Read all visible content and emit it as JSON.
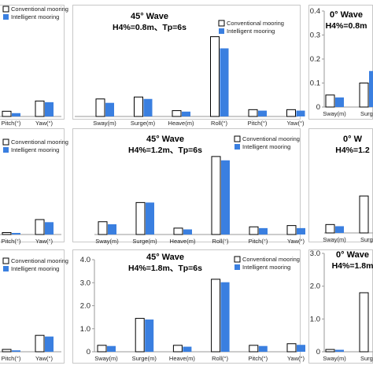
{
  "legend": {
    "conventional": "Conventional mooring",
    "intelligent": "Intelligent mooring"
  },
  "colors": {
    "conventional_fill": "#ffffff",
    "conventional_stroke": "#000000",
    "intelligent": "#3a7fe0",
    "axis": "#9a9a9a"
  },
  "chart_data": [
    {
      "id": "left-1",
      "type": "bar",
      "categories": [
        "Pitch(°)",
        "Yaw(°)"
      ],
      "ylim": [
        0,
        0.45
      ],
      "series": [
        {
          "name": "Conventional mooring",
          "values": [
            0.022,
            0.065
          ]
        },
        {
          "name": "Intelligent mooring",
          "values": [
            0.014,
            0.06
          ]
        }
      ]
    },
    {
      "id": "mid-1",
      "type": "bar",
      "title_line1": "45° Wave",
      "title_line2": "H4%=0.8m、Tp=6s",
      "categories": [
        "Sway(m)",
        "Surge(m)",
        "Heave(m)",
        "Roll(°)",
        "Pitch(°)",
        "Yaw(°)"
      ],
      "ylim": [
        0,
        0.55
      ],
      "series": [
        {
          "name": "Conventional mooring",
          "values": [
            0.09,
            0.1,
            0.03,
            0.41,
            0.035,
            0.035
          ]
        },
        {
          "name": "Intelligent mooring",
          "values": [
            0.07,
            0.09,
            0.025,
            0.35,
            0.03,
            0.03
          ]
        }
      ]
    },
    {
      "id": "right-1",
      "type": "bar",
      "title_line1": "0° Wave",
      "title_line2": "H4%=0.8m",
      "categories": [
        "Sway(m)",
        "Surge"
      ],
      "yticks": [
        "0",
        "0.1",
        "0.2",
        "0.3",
        "0.4"
      ],
      "ylim": [
        0,
        0.4
      ],
      "series": [
        {
          "name": "Conventional mooring",
          "values": [
            0.05,
            0.1
          ]
        },
        {
          "name": "Intelligent mooring",
          "values": [
            0.04,
            0.15
          ]
        }
      ]
    },
    {
      "id": "left-2",
      "type": "bar",
      "categories": [
        "Pitch(°)",
        "Yaw(°)"
      ],
      "ylim": [
        0,
        0.8
      ],
      "series": [
        {
          "name": "Conventional mooring",
          "values": [
            0.015,
            0.115
          ]
        },
        {
          "name": "Intelligent mooring",
          "values": [
            0.012,
            0.095
          ]
        }
      ]
    },
    {
      "id": "mid-2",
      "type": "bar",
      "title_line1": "45° Wave",
      "title_line2": "H4%=1.2m、Tp=6s",
      "categories": [
        "Sway(m)",
        "Surge(m)",
        "Heave(m)",
        "Roll(°)",
        "Pitch(°)",
        "Yaw(°)"
      ],
      "ylim": [
        0,
        0.8
      ],
      "series": [
        {
          "name": "Conventional mooring",
          "values": [
            0.1,
            0.25,
            0.05,
            0.61,
            0.06,
            0.07
          ]
        },
        {
          "name": "Intelligent mooring",
          "values": [
            0.08,
            0.25,
            0.04,
            0.58,
            0.05,
            0.05
          ]
        }
      ]
    },
    {
      "id": "right-2",
      "type": "bar",
      "title_line1": "0° W",
      "title_line2": "H4%=1.2",
      "categories": [
        "Sway(m)",
        "Surge"
      ],
      "ylim": [
        0,
        0.6
      ],
      "series": [
        {
          "name": "Conventional mooring",
          "values": [
            0.05,
            0.22
          ]
        },
        {
          "name": "Intelligent mooring",
          "values": [
            0.04,
            0.0
          ]
        }
      ]
    },
    {
      "id": "left-3",
      "type": "bar",
      "categories": [
        "Pitch(°)",
        "Yaw(°)"
      ],
      "ylim": [
        0,
        4.2
      ],
      "series": [
        {
          "name": "Conventional mooring",
          "values": [
            0.1,
            0.7
          ]
        },
        {
          "name": "Intelligent mooring",
          "values": [
            0.06,
            0.65
          ]
        }
      ]
    },
    {
      "id": "mid-3",
      "type": "bar",
      "title_line1": "45° Wave",
      "title_line2": "H4%=1.8m、Tp=6s",
      "categories": [
        "Sway(m)",
        "Surge(m)",
        "Heave(m)",
        "Roll(°)",
        "Pitch(°)",
        "Yaw(°)"
      ],
      "yticks": [
        "0",
        "1.0",
        "2.0",
        "3.0",
        "4.0"
      ],
      "ylim": [
        0,
        4.0
      ],
      "series": [
        {
          "name": "Conventional mooring",
          "values": [
            0.28,
            1.45,
            0.28,
            3.15,
            0.28,
            0.35
          ]
        },
        {
          "name": "Intelligent mooring",
          "values": [
            0.25,
            1.4,
            0.22,
            3.02,
            0.25,
            0.3
          ]
        }
      ]
    },
    {
      "id": "right-3",
      "type": "bar",
      "title_line1": "0° Wave",
      "title_line2": "H4%=1.8m",
      "categories": [
        "Sway(m)",
        "Surge"
      ],
      "yticks": [
        "0",
        "1.0",
        "2.0",
        "3.0"
      ],
      "ylim": [
        0,
        3.0
      ],
      "series": [
        {
          "name": "Conventional mooring",
          "values": [
            0.07,
            1.8
          ]
        },
        {
          "name": "Intelligent mooring",
          "values": [
            0.06,
            0.0
          ]
        }
      ]
    }
  ]
}
